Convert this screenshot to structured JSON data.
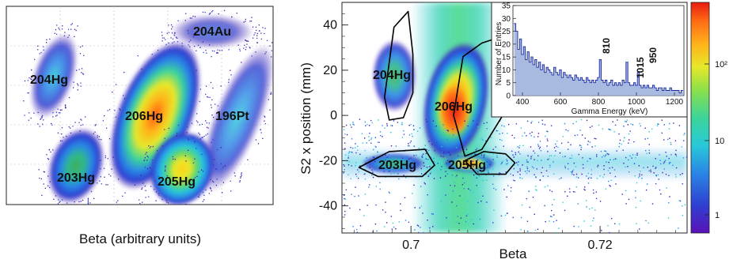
{
  "colors": {
    "palette": [
      "#4a1aa8",
      "#2e3fd0",
      "#2a86e6",
      "#27c9d8",
      "#3cd49a",
      "#8be04a",
      "#e6e82a",
      "#ffb21a",
      "#ff6a14",
      "#e81c10"
    ]
  },
  "chart_data": [
    {
      "type": "heatmap",
      "panel": "left",
      "title": "",
      "xlabel": "Beta (arbitrary units)",
      "ylabel": "",
      "grid": true,
      "annotations": [
        "204Au",
        "204Hg",
        "206Hg",
        "196Pt",
        "203Hg",
        "205Hg"
      ],
      "islands": [
        {
          "label": "204Au",
          "intensity": 0.35
        },
        {
          "label": "204Hg",
          "intensity": 0.45
        },
        {
          "label": "206Hg",
          "intensity": 0.95
        },
        {
          "label": "196Pt",
          "intensity": 0.4
        },
        {
          "label": "203Hg",
          "intensity": 0.6
        },
        {
          "label": "205Hg",
          "intensity": 0.8
        }
      ]
    },
    {
      "type": "heatmap",
      "panel": "right",
      "title": "",
      "xlabel": "Beta",
      "ylabel": "S2 x position (mm)",
      "xlim": [
        0.6927,
        0.7292
      ],
      "ylim": [
        -52,
        50
      ],
      "xticks": [
        "0.7",
        "0.72"
      ],
      "yticks": [
        "40",
        "20",
        "0",
        "-20",
        "-40"
      ],
      "zscale": "log",
      "colorbar_ticks": [
        "10²",
        "10",
        "1"
      ],
      "gates": [
        {
          "label": "204Hg",
          "points": [
            [
              0.6972,
              8
            ],
            [
              0.6982,
              39
            ],
            [
              0.6997,
              46
            ],
            [
              0.7002,
              27
            ],
            [
              0.7002,
              10
            ],
            [
              0.6992,
              -1
            ],
            [
              0.6977,
              -2
            ]
          ]
        },
        {
          "label": "206Hg",
          "points": [
            [
              0.7055,
              26
            ],
            [
              0.7075,
              32
            ],
            [
              0.7097,
              35
            ],
            [
              0.7107,
              22
            ],
            [
              0.7097,
              0
            ],
            [
              0.7075,
              -15
            ],
            [
              0.7057,
              -18
            ],
            [
              0.7045,
              0
            ]
          ]
        },
        {
          "label": "203Hg",
          "points": [
            [
              0.6945,
              -23
            ],
            [
              0.6977,
              -16
            ],
            [
              0.7015,
              -15
            ],
            [
              0.7025,
              -22
            ],
            [
              0.7012,
              -27
            ],
            [
              0.6965,
              -27
            ]
          ]
        },
        {
          "label": "205Hg",
          "points": [
            [
              0.7057,
              -20
            ],
            [
              0.7077,
              -16
            ],
            [
              0.71,
              -17
            ],
            [
              0.711,
              -21
            ],
            [
              0.71,
              -26
            ],
            [
              0.707,
              -26
            ]
          ]
        }
      ]
    },
    {
      "type": "area",
      "panel": "inset",
      "title": "",
      "xlabel": "Gamma Energy (keV)",
      "ylabel": "Number of Entries",
      "xlim": [
        350,
        1250
      ],
      "ylim": [
        0,
        35
      ],
      "xticks": [
        "400",
        "600",
        "800",
        "1000",
        "1200"
      ],
      "yticks": [
        "0",
        "5",
        "10",
        "15",
        "20",
        "25",
        "30",
        "35"
      ],
      "annotations": [
        "810",
        "950",
        "1015"
      ],
      "x": [
        360,
        370,
        380,
        390,
        400,
        410,
        420,
        430,
        440,
        450,
        460,
        470,
        480,
        490,
        500,
        510,
        520,
        530,
        540,
        550,
        560,
        570,
        580,
        590,
        600,
        610,
        620,
        630,
        640,
        650,
        660,
        670,
        680,
        690,
        700,
        710,
        720,
        730,
        740,
        750,
        760,
        770,
        780,
        790,
        800,
        810,
        820,
        830,
        840,
        850,
        860,
        870,
        880,
        890,
        900,
        910,
        920,
        930,
        940,
        950,
        960,
        970,
        980,
        990,
        1000,
        1010,
        1020,
        1030,
        1040,
        1050,
        1060,
        1070,
        1080,
        1090,
        1100,
        1110,
        1120,
        1130,
        1140,
        1150,
        1160,
        1170,
        1180,
        1190,
        1200,
        1210,
        1220,
        1230,
        1240
      ],
      "values": [
        28,
        25,
        18,
        22,
        16,
        19,
        14,
        17,
        13,
        15,
        12,
        14,
        11,
        13,
        10,
        12,
        9,
        11,
        10,
        9,
        8,
        11,
        9,
        8,
        10,
        7,
        9,
        8,
        7,
        8,
        7,
        6,
        8,
        7,
        6,
        7,
        6,
        5,
        7,
        6,
        5,
        6,
        5,
        6,
        7,
        14,
        6,
        5,
        6,
        4,
        5,
        6,
        4,
        5,
        4,
        5,
        4,
        6,
        5,
        13,
        5,
        4,
        4,
        5,
        4,
        9,
        4,
        3,
        4,
        3,
        4,
        3,
        3,
        4,
        3,
        2,
        3,
        3,
        2,
        3,
        2,
        2,
        3,
        2,
        2,
        2,
        2,
        1,
        2
      ]
    }
  ]
}
